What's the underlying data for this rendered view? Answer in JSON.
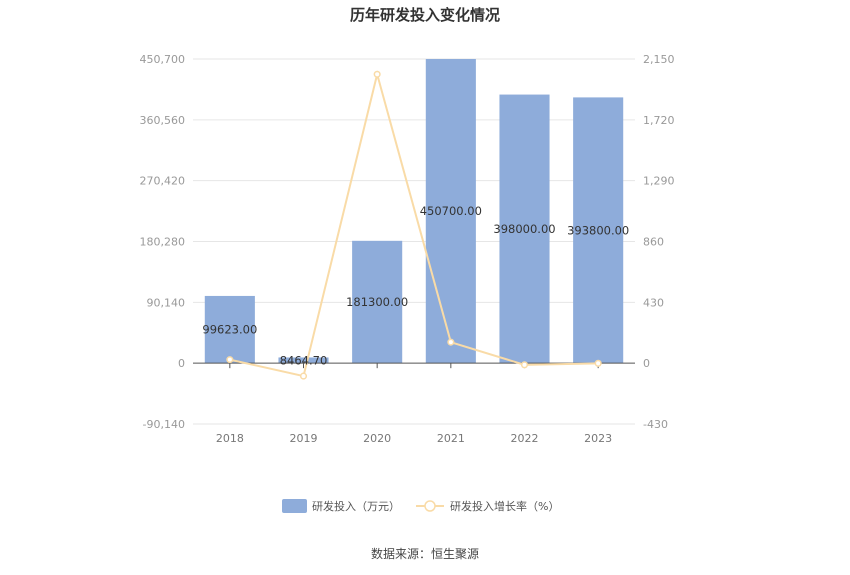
{
  "chart_data": {
    "type": "bar+line",
    "title": "历年研发投入变化情况",
    "categories": [
      "2018",
      "2019",
      "2020",
      "2021",
      "2022",
      "2023"
    ],
    "series": [
      {
        "name": "研发投入（万元）",
        "type": "bar",
        "axis": "left",
        "values": [
          99623.0,
          8464.7,
          181300.0,
          450700.0,
          398000.0,
          393800.0
        ],
        "labels": [
          "99623.00",
          "8464.70",
          "181300.00",
          "450700.00",
          "398000.00",
          "393800.00"
        ],
        "color": "#8eacda"
      },
      {
        "name": "研发投入增长率（%）",
        "type": "line",
        "axis": "right",
        "values": [
          25,
          -91.5,
          2041.9,
          148.6,
          -11.7,
          -1.1
        ],
        "color": "#f9dba7"
      }
    ],
    "y_left": {
      "min": -90140,
      "max": 450700,
      "ticks": [
        -90140,
        0,
        90140,
        180280,
        270420,
        360560,
        450700
      ],
      "tick_labels": [
        "-90,140",
        "0",
        "90,140",
        "180,280",
        "270,420",
        "360,560",
        "450,700"
      ]
    },
    "y_right": {
      "min": -430,
      "max": 2150,
      "ticks": [
        -430,
        0,
        430,
        860,
        1290,
        1720,
        2150
      ],
      "tick_labels": [
        "-430",
        "0",
        "430",
        "860",
        "1,290",
        "1,720",
        "2,150"
      ]
    },
    "grid": true,
    "legend_position": "bottom",
    "source": "数据来源：恒生聚源"
  }
}
